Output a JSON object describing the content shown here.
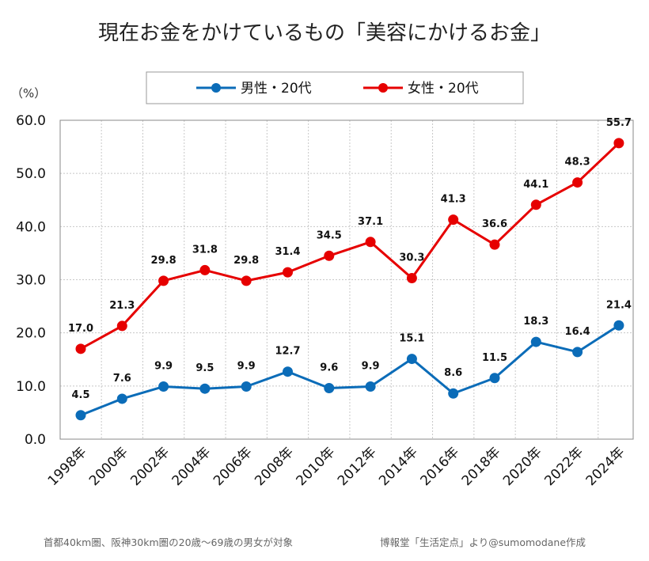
{
  "chart_data": {
    "type": "line",
    "title": "現在お金をかけているもの「美容にかけるお金」",
    "unit_label": "（%）",
    "categories": [
      "1998年",
      "2000年",
      "2002年",
      "2004年",
      "2006年",
      "2008年",
      "2010年",
      "2012年",
      "2014年",
      "2016年",
      "2018年",
      "2020年",
      "2022年",
      "2024年"
    ],
    "ylim": [
      0,
      60
    ],
    "yticks": [
      "0.0",
      "10.0",
      "20.0",
      "30.0",
      "40.0",
      "50.0",
      "60.0"
    ],
    "grid": true,
    "legend_position": "top-center",
    "series": [
      {
        "name": "男性・20代",
        "color": "#0b6cb8",
        "values": [
          4.5,
          7.6,
          9.9,
          9.5,
          9.9,
          12.7,
          9.6,
          9.9,
          15.1,
          8.6,
          11.5,
          18.3,
          16.4,
          21.4
        ],
        "labels": [
          "4.5",
          "7.6",
          "9.9",
          "9.5",
          "9.9",
          "12.7",
          "9.6",
          "9.9",
          "15.1",
          "8.6",
          "11.5",
          "18.3",
          "16.4",
          "21.4"
        ]
      },
      {
        "name": "女性・20代",
        "color": "#e60000",
        "values": [
          17.0,
          21.3,
          29.8,
          31.8,
          29.8,
          31.4,
          34.5,
          37.1,
          30.3,
          41.3,
          36.6,
          44.1,
          48.3,
          55.7
        ],
        "labels": [
          "17.0",
          "21.3",
          "29.8",
          "31.8",
          "29.8",
          "31.4",
          "34.5",
          "37.1",
          "30.3",
          "41.3",
          "36.6",
          "44.1",
          "48.3",
          "55.7"
        ]
      }
    ]
  },
  "footnotes": {
    "left": "首都40km圏、阪神30km圏の20歳～69歳の男女が対象",
    "right": "博報堂「生活定点」より@sumomodane作成"
  }
}
